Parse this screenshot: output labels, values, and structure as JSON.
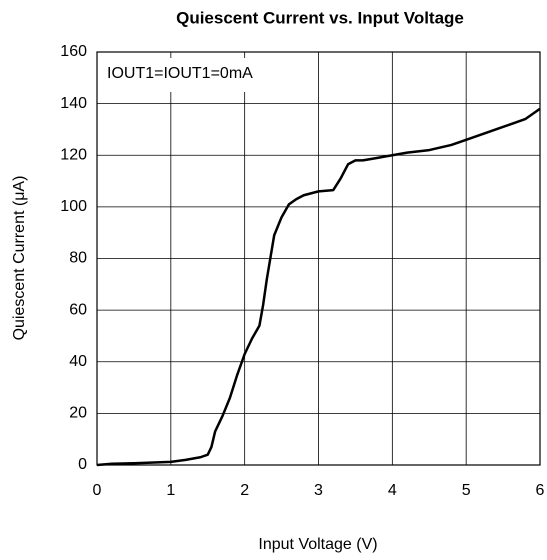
{
  "chart_data": {
    "type": "line",
    "title": "Quiescent Current  vs. Input Voltage",
    "x_label": "Input Voltage (V)",
    "y_label": "Quiescent Current (μA)",
    "annotation": "IOUT1=IOUT1=0mA",
    "x": [
      0,
      0.2,
      0.5,
      1.0,
      1.2,
      1.4,
      1.5,
      1.55,
      1.6,
      1.7,
      1.8,
      1.9,
      2.0,
      2.1,
      2.2,
      2.25,
      2.3,
      2.4,
      2.5,
      2.6,
      2.7,
      2.8,
      3.0,
      3.2,
      3.3,
      3.4,
      3.5,
      3.6,
      3.8,
      4.0,
      4.2,
      4.5,
      4.8,
      5.0,
      5.3,
      5.6,
      5.8,
      6.0
    ],
    "series": [
      {
        "name": "Quiescent Current",
        "color": "#000000",
        "values": [
          0,
          0.5,
          0.7,
          1.2,
          2,
          3,
          4,
          7,
          13,
          19,
          26,
          35,
          43,
          49,
          54,
          62,
          72,
          89,
          96,
          101,
          103,
          104.5,
          106,
          106.5,
          111,
          116.5,
          118,
          118,
          119,
          120,
          121,
          122,
          124,
          126,
          129,
          132,
          134,
          138
        ]
      }
    ],
    "xlim": [
      0,
      6
    ],
    "xticks": [
      0,
      1,
      2,
      3,
      4,
      5,
      6
    ],
    "ylim": [
      0,
      160
    ],
    "yticks": [
      0,
      20,
      40,
      60,
      80,
      100,
      120,
      140,
      160
    ],
    "grid": true
  }
}
